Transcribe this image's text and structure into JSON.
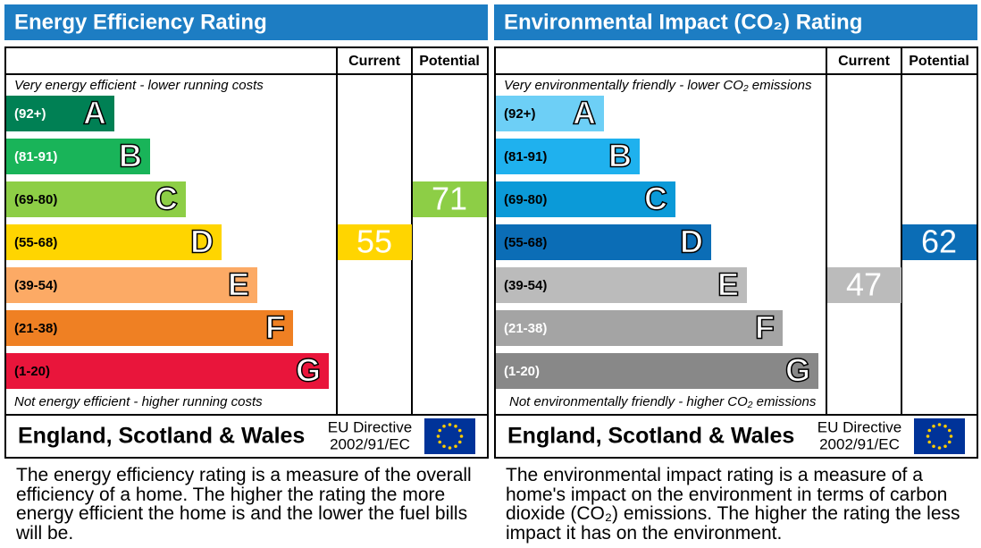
{
  "panels": [
    {
      "title": "Energy Efficiency Rating",
      "column_headers": [
        "Current",
        "Potential"
      ],
      "top_note": "Very energy efficient - lower running costs",
      "bottom_note": "Not energy efficient - higher running costs",
      "bands": [
        {
          "range": "(92+)",
          "letter": "A",
          "color": "#008054",
          "text_color": "#ffffff"
        },
        {
          "range": "(81-91)",
          "letter": "B",
          "color": "#19b459",
          "text_color": "#ffffff"
        },
        {
          "range": "(69-80)",
          "letter": "C",
          "color": "#8dce46",
          "text_color": "#000000"
        },
        {
          "range": "(55-68)",
          "letter": "D",
          "color": "#ffd500",
          "text_color": "#000000"
        },
        {
          "range": "(39-54)",
          "letter": "E",
          "color": "#fcaa65",
          "text_color": "#000000"
        },
        {
          "range": "(21-38)",
          "letter": "F",
          "color": "#ef8023",
          "text_color": "#000000"
        },
        {
          "range": "(1-20)",
          "letter": "G",
          "color": "#e9153b",
          "text_color": "#000000"
        }
      ],
      "current": 55,
      "potential": 71,
      "footer": {
        "region": "England, Scotland & Wales",
        "directive": [
          "EU Directive",
          "2002/91/EC"
        ]
      },
      "description": "The energy efficiency rating is a measure of the overall efficiency of a home. The higher the rating the more energy efficient the home is and the lower the fuel bills will be."
    },
    {
      "title": "Environmental Impact (CO₂) Rating",
      "column_headers": [
        "Current",
        "Potential"
      ],
      "top_note": "Very environmentally friendly - lower CO₂ emissions",
      "bottom_note": "Not environmentally friendly - higher CO₂ emissions",
      "bands": [
        {
          "range": "(92+)",
          "letter": "A",
          "color": "#6dcff6",
          "text_color": "#000000"
        },
        {
          "range": "(81-91)",
          "letter": "B",
          "color": "#1fb1ee",
          "text_color": "#000000"
        },
        {
          "range": "(69-80)",
          "letter": "C",
          "color": "#0b9ad8",
          "text_color": "#000000"
        },
        {
          "range": "(55-68)",
          "letter": "D",
          "color": "#0b6db6",
          "text_color": "#000000"
        },
        {
          "range": "(39-54)",
          "letter": "E",
          "color": "#bbbbbb",
          "text_color": "#000000"
        },
        {
          "range": "(21-38)",
          "letter": "F",
          "color": "#a4a4a4",
          "text_color": "#ffffff"
        },
        {
          "range": "(1-20)",
          "letter": "G",
          "color": "#888888",
          "text_color": "#ffffff"
        }
      ],
      "current": 47,
      "potential": 62,
      "footer": {
        "region": "England, Scotland & Wales",
        "directive": [
          "EU Directive",
          "2002/91/EC"
        ]
      },
      "description": "The environmental impact rating is a measure of a home's impact on the environment in terms of carbon dioxide (CO₂) emissions. The higher the rating the less impact it has on the environment."
    }
  ]
}
